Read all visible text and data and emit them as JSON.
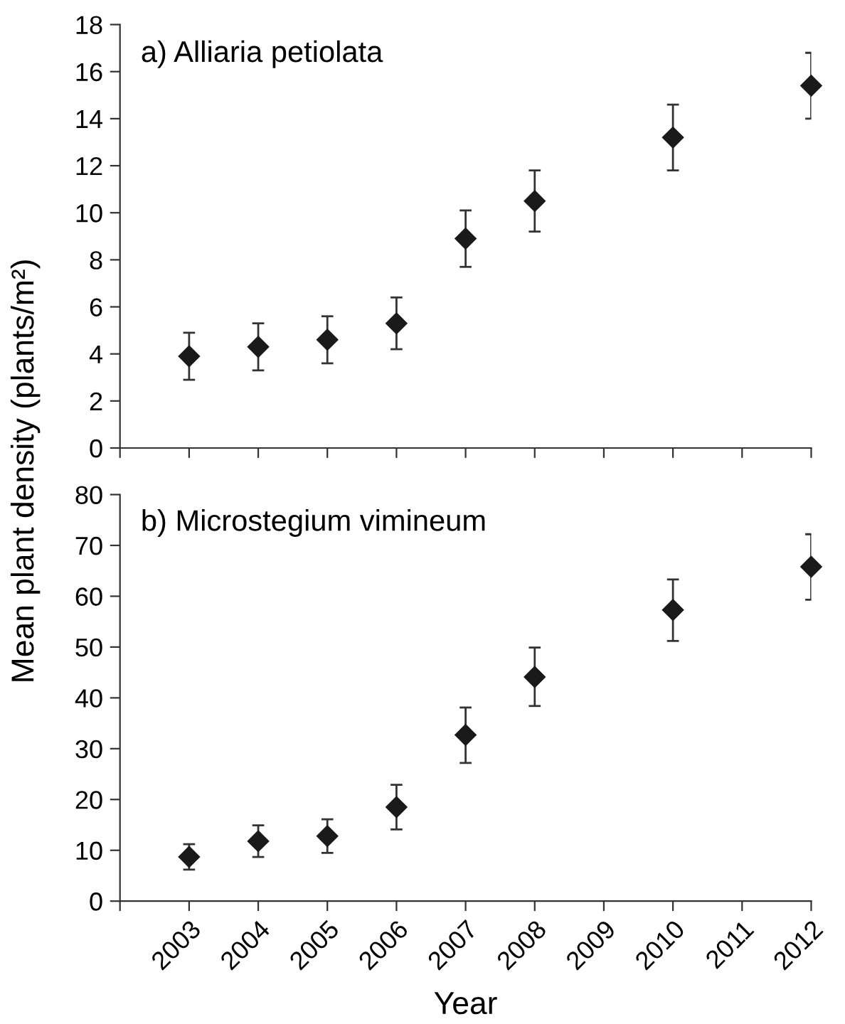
{
  "chart_data": [
    {
      "type": "scatter",
      "title": "a) Alliaria petiolata",
      "ylabel": "Mean plant density (plants/m²)",
      "x": [
        2003,
        2004,
        2005,
        2006,
        2007,
        2008,
        2010,
        2012
      ],
      "series": [
        {
          "color": "#1a1a1a",
          "values": [
            3.9,
            4.3,
            4.6,
            5.3,
            8.9,
            10.5,
            13.2,
            15.4
          ],
          "errors": [
            [
              2.9,
              4.9
            ],
            [
              3.3,
              5.3
            ],
            [
              3.6,
              5.6
            ],
            [
              4.2,
              6.4
            ],
            [
              7.7,
              10.1
            ],
            [
              9.2,
              11.8
            ],
            [
              11.8,
              14.6
            ],
            [
              14.0,
              16.8
            ]
          ]
        }
      ],
      "xlim": [
        2002,
        2012
      ],
      "xticks": [
        {
          "value": 2002,
          "label": null
        },
        {
          "value": 2003,
          "label": null
        },
        {
          "value": 2004,
          "label": null
        },
        {
          "value": 2005,
          "label": null
        },
        {
          "value": 2006,
          "label": null
        },
        {
          "value": 2007,
          "label": null
        },
        {
          "value": 2008,
          "label": null
        },
        {
          "value": 2009,
          "label": null
        },
        {
          "value": 2010,
          "label": null
        },
        {
          "value": 2011,
          "label": null
        },
        {
          "value": 2012,
          "label": null
        }
      ],
      "ylim": [
        0,
        18
      ],
      "yticks": [
        0,
        2,
        4,
        6,
        8,
        10,
        12,
        14,
        16,
        18
      ],
      "marker": "diamond",
      "grid": false,
      "legend": false,
      "tick_labels": "y"
    },
    {
      "type": "scatter",
      "title": "b) Microstegium vimineum",
      "xlabel": "Year",
      "x": [
        2003,
        2004,
        2005,
        2006,
        2007,
        2008,
        2010,
        2012
      ],
      "series": [
        {
          "color": "#1a1a1a",
          "values": [
            8.7,
            11.8,
            12.8,
            18.5,
            32.7,
            44.1,
            57.3,
            65.8
          ],
          "errors": [
            [
              6.2,
              11.2
            ],
            [
              8.7,
              14.9
            ],
            [
              9.5,
              16.1
            ],
            [
              14.1,
              22.9
            ],
            [
              27.2,
              38.1
            ],
            [
              38.4,
              49.9
            ],
            [
              51.2,
              63.3
            ],
            [
              59.3,
              72.2
            ]
          ]
        }
      ],
      "xlim": [
        2002,
        2012
      ],
      "xticks": [
        {
          "value": 2002,
          "label": null
        },
        2003,
        2004,
        2005,
        2006,
        2007,
        2008,
        2009,
        2010,
        2011,
        2012
      ],
      "ylim": [
        0,
        80
      ],
      "yticks": [
        0,
        10,
        20,
        30,
        40,
        50,
        60,
        70,
        80
      ],
      "marker": "diamond",
      "grid": false,
      "legend": false
    }
  ]
}
